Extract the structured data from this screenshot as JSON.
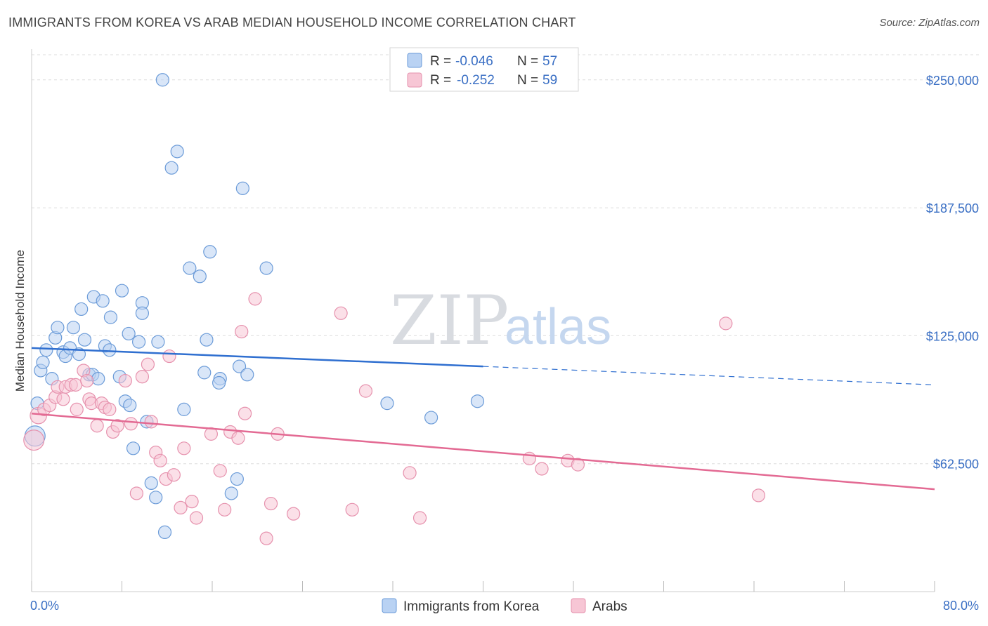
{
  "title": "IMMIGRANTS FROM KOREA VS ARAB MEDIAN HOUSEHOLD INCOME CORRELATION CHART",
  "source": "Source: ZipAtlas.com",
  "watermark": {
    "zip": "ZIP",
    "atlas": "atlas"
  },
  "colors": {
    "korea_fill": "#b9d2f3",
    "korea_stroke": "#6b9bd8",
    "korea_line": "#2f6fd0",
    "arab_fill": "#f7c6d5",
    "arab_stroke": "#e691ad",
    "arab_line": "#e36a93",
    "grid": "#dddddd",
    "axis_text": "#3a6fc4"
  },
  "legend": {
    "rows": [
      {
        "r_label": "R =",
        "r_value": "-0.046",
        "n_label": "N =",
        "n_value": "57"
      },
      {
        "r_label": "R =",
        "r_value": "-0.252",
        "n_label": "N =",
        "n_value": "59"
      }
    ]
  },
  "chart_data": {
    "type": "scatter",
    "title": "IMMIGRANTS FROM KOREA VS ARAB MEDIAN HOUSEHOLD INCOME CORRELATION CHART",
    "xlabel": "",
    "ylabel": "Median Household Income",
    "xlim": [
      0,
      80
    ],
    "ylim": [
      0,
      265000
    ],
    "x_tick_labels": [
      "0.0%",
      "80.0%"
    ],
    "y_ticks": [
      62500,
      125000,
      187500,
      250000
    ],
    "y_tick_labels": [
      "$62,500",
      "$125,000",
      "$187,500",
      "$250,000"
    ],
    "grid": true,
    "series": [
      {
        "name": "Immigrants from Korea",
        "r": -0.046,
        "n": 57,
        "trend": {
          "x_solid": [
            0,
            40
          ],
          "y_solid": [
            119000,
            110000
          ],
          "x_dashed": [
            40,
            80
          ],
          "y_dashed": [
            110000,
            101000
          ]
        },
        "points": [
          [
            0.3,
            76000,
            1.6
          ],
          [
            0.5,
            92000,
            1
          ],
          [
            0.8,
            108000,
            1
          ],
          [
            1.0,
            112000,
            1
          ],
          [
            1.3,
            118000,
            1
          ],
          [
            1.8,
            104000,
            1
          ],
          [
            2.1,
            124000,
            1
          ],
          [
            2.3,
            129000,
            1
          ],
          [
            2.8,
            117000,
            1
          ],
          [
            3.0,
            115000,
            1
          ],
          [
            3.4,
            119000,
            1
          ],
          [
            3.7,
            129000,
            1
          ],
          [
            4.2,
            116000,
            1
          ],
          [
            4.7,
            123000,
            1
          ],
          [
            4.4,
            138000,
            1
          ],
          [
            5.1,
            106000,
            1
          ],
          [
            5.4,
            106000,
            1
          ],
          [
            5.5,
            144000,
            1
          ],
          [
            5.9,
            104000,
            1
          ],
          [
            6.3,
            142000,
            1
          ],
          [
            6.5,
            120000,
            1
          ],
          [
            6.9,
            118000,
            1
          ],
          [
            7.0,
            134000,
            1
          ],
          [
            7.8,
            105000,
            1
          ],
          [
            8.0,
            147000,
            1
          ],
          [
            8.3,
            93000,
            1
          ],
          [
            8.6,
            126000,
            1
          ],
          [
            8.7,
            91000,
            1
          ],
          [
            9.0,
            70000,
            1
          ],
          [
            9.5,
            122000,
            1
          ],
          [
            9.8,
            141000,
            1
          ],
          [
            10.2,
            83000,
            1
          ],
          [
            10.6,
            53000,
            1
          ],
          [
            11.0,
            46000,
            1
          ],
          [
            11.2,
            122000,
            1
          ],
          [
            11.6,
            250000,
            1
          ],
          [
            11.8,
            29000,
            1
          ],
          [
            12.4,
            207000,
            1
          ],
          [
            12.9,
            215000,
            1
          ],
          [
            13.5,
            89000,
            1
          ],
          [
            14.0,
            158000,
            1
          ],
          [
            14.9,
            154000,
            1
          ],
          [
            15.3,
            107000,
            1
          ],
          [
            15.5,
            123000,
            1
          ],
          [
            15.8,
            166000,
            1
          ],
          [
            16.7,
            104000,
            1
          ],
          [
            16.6,
            102000,
            1
          ],
          [
            17.7,
            48000,
            1
          ],
          [
            18.4,
            110000,
            1
          ],
          [
            18.7,
            197000,
            1
          ],
          [
            19.1,
            106000,
            1
          ],
          [
            20.8,
            158000,
            1
          ],
          [
            18.2,
            55000,
            1
          ],
          [
            31.5,
            92000,
            1
          ],
          [
            35.4,
            85000,
            1
          ],
          [
            39.5,
            93000,
            1
          ],
          [
            9.8,
            136000,
            1
          ]
        ]
      },
      {
        "name": "Arabs",
        "r": -0.252,
        "n": 59,
        "trend": {
          "x_solid": [
            0,
            80
          ],
          "y_solid": [
            87000,
            50000
          ]
        },
        "points": [
          [
            0.2,
            74000,
            1.6
          ],
          [
            0.6,
            86000,
            1.3
          ],
          [
            1.1,
            89000,
            1
          ],
          [
            1.6,
            91000,
            1
          ],
          [
            2.1,
            95000,
            1
          ],
          [
            2.3,
            100000,
            1
          ],
          [
            2.8,
            94000,
            1
          ],
          [
            3.0,
            100000,
            1
          ],
          [
            3.5,
            101000,
            1
          ],
          [
            3.9,
            101000,
            1
          ],
          [
            4.0,
            89000,
            1
          ],
          [
            4.6,
            108000,
            1
          ],
          [
            4.9,
            103000,
            1
          ],
          [
            5.1,
            94000,
            1
          ],
          [
            5.3,
            92000,
            1
          ],
          [
            5.8,
            81000,
            1
          ],
          [
            6.2,
            92000,
            1
          ],
          [
            6.5,
            90000,
            1
          ],
          [
            6.9,
            89000,
            1
          ],
          [
            7.2,
            78000,
            1
          ],
          [
            7.6,
            81000,
            1
          ],
          [
            8.3,
            103000,
            1
          ],
          [
            8.8,
            82000,
            1
          ],
          [
            9.3,
            48000,
            1
          ],
          [
            9.8,
            105000,
            1
          ],
          [
            10.3,
            111000,
            1
          ],
          [
            10.6,
            83000,
            1
          ],
          [
            11.0,
            68000,
            1
          ],
          [
            11.4,
            64000,
            1
          ],
          [
            11.9,
            55000,
            1
          ],
          [
            12.2,
            115000,
            1
          ],
          [
            12.6,
            57000,
            1
          ],
          [
            13.2,
            41000,
            1
          ],
          [
            13.5,
            70000,
            1
          ],
          [
            14.2,
            44000,
            1
          ],
          [
            14.6,
            36000,
            1
          ],
          [
            15.9,
            77000,
            1
          ],
          [
            16.7,
            59000,
            1
          ],
          [
            17.1,
            40000,
            1
          ],
          [
            17.6,
            78000,
            1
          ],
          [
            18.3,
            75000,
            1
          ],
          [
            18.6,
            127000,
            1
          ],
          [
            18.9,
            87000,
            1
          ],
          [
            19.8,
            143000,
            1
          ],
          [
            20.8,
            26000,
            1
          ],
          [
            21.2,
            43000,
            1
          ],
          [
            21.8,
            77000,
            1
          ],
          [
            23.2,
            38000,
            1
          ],
          [
            27.4,
            136000,
            1
          ],
          [
            28.4,
            40000,
            1
          ],
          [
            29.6,
            98000,
            1
          ],
          [
            33.5,
            58000,
            1
          ],
          [
            34.4,
            36000,
            1
          ],
          [
            44.1,
            65000,
            1
          ],
          [
            45.2,
            60000,
            1
          ],
          [
            47.5,
            64000,
            1
          ],
          [
            48.4,
            62000,
            1
          ],
          [
            61.5,
            131000,
            1
          ],
          [
            64.4,
            47000,
            1
          ]
        ]
      }
    ]
  },
  "bottom_legend": [
    "Immigrants from Korea",
    "Arabs"
  ]
}
